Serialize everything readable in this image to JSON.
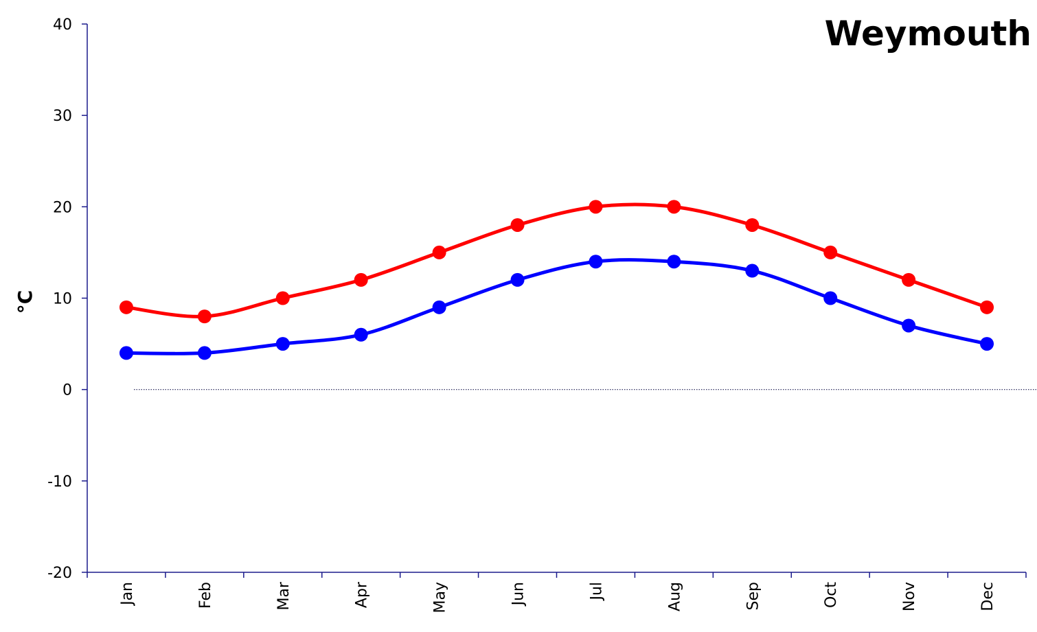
{
  "chart_data": {
    "type": "line",
    "title": "Weymouth",
    "ylabel": "°C",
    "xlabel": "",
    "categories": [
      "Jan",
      "Feb",
      "Mar",
      "Apr",
      "May",
      "Jun",
      "Jul",
      "Aug",
      "Sep",
      "Oct",
      "Nov",
      "Dec"
    ],
    "ylim": [
      -20,
      40
    ],
    "yticks": [
      40,
      30,
      20,
      10,
      0,
      -10,
      -20
    ],
    "series": [
      {
        "color": "#ff0000",
        "values": [
          9,
          8,
          10,
          12,
          15,
          18,
          20,
          20,
          18,
          15,
          12,
          9
        ]
      },
      {
        "color": "#0000ff",
        "values": [
          4,
          4,
          5,
          6,
          9,
          12,
          14,
          14,
          13,
          10,
          7,
          5
        ]
      }
    ],
    "zero_line": true,
    "grid": false,
    "legend": "none"
  }
}
